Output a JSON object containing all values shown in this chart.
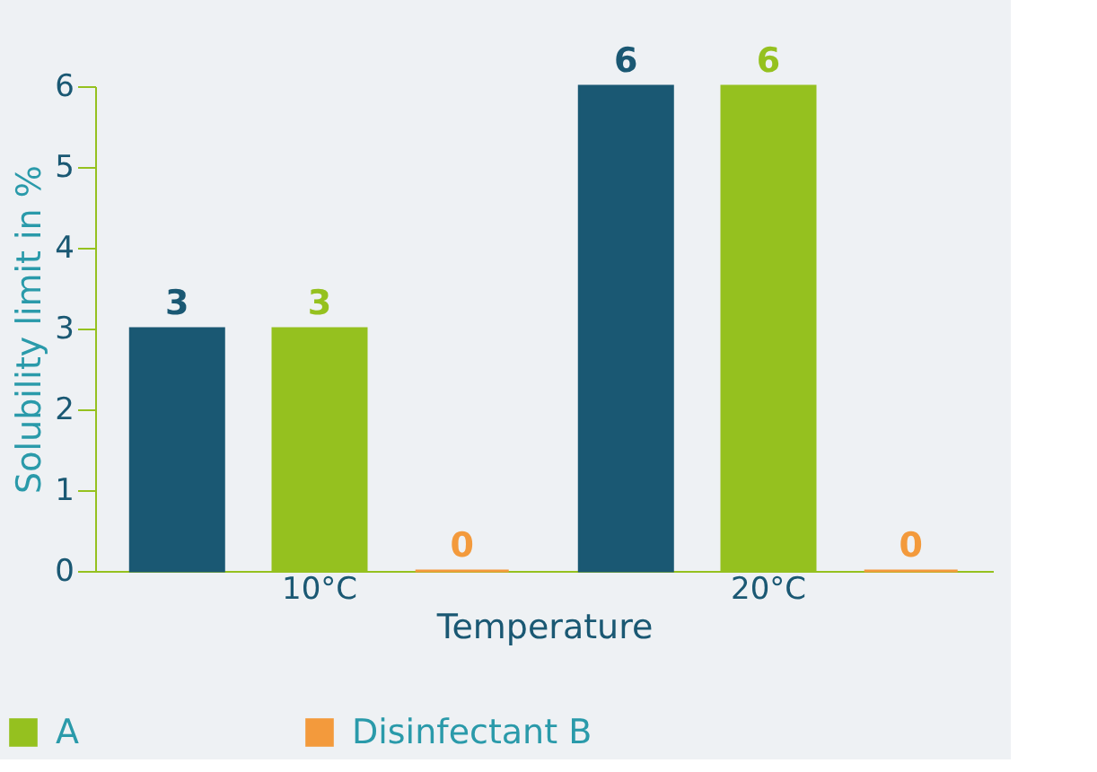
{
  "chart_data": {
    "type": "bar",
    "xlabel": "Temperature",
    "ylabel": "Solubility limit in %",
    "categories": [
      "10°C",
      "20°C"
    ],
    "series": [
      {
        "color": "#1a5873",
        "values": [
          3,
          6
        ]
      },
      {
        "name": "A",
        "color": "#95c11f",
        "values": [
          3,
          6
        ]
      },
      {
        "name": "Disinfectant B",
        "color": "#f39a3c",
        "values": [
          0,
          0
        ]
      }
    ],
    "ylim": [
      0,
      6
    ],
    "yticks": [
      0,
      1,
      2,
      3,
      4,
      5,
      6
    ],
    "data_labels": true,
    "grid": false,
    "legend": "bottom"
  }
}
